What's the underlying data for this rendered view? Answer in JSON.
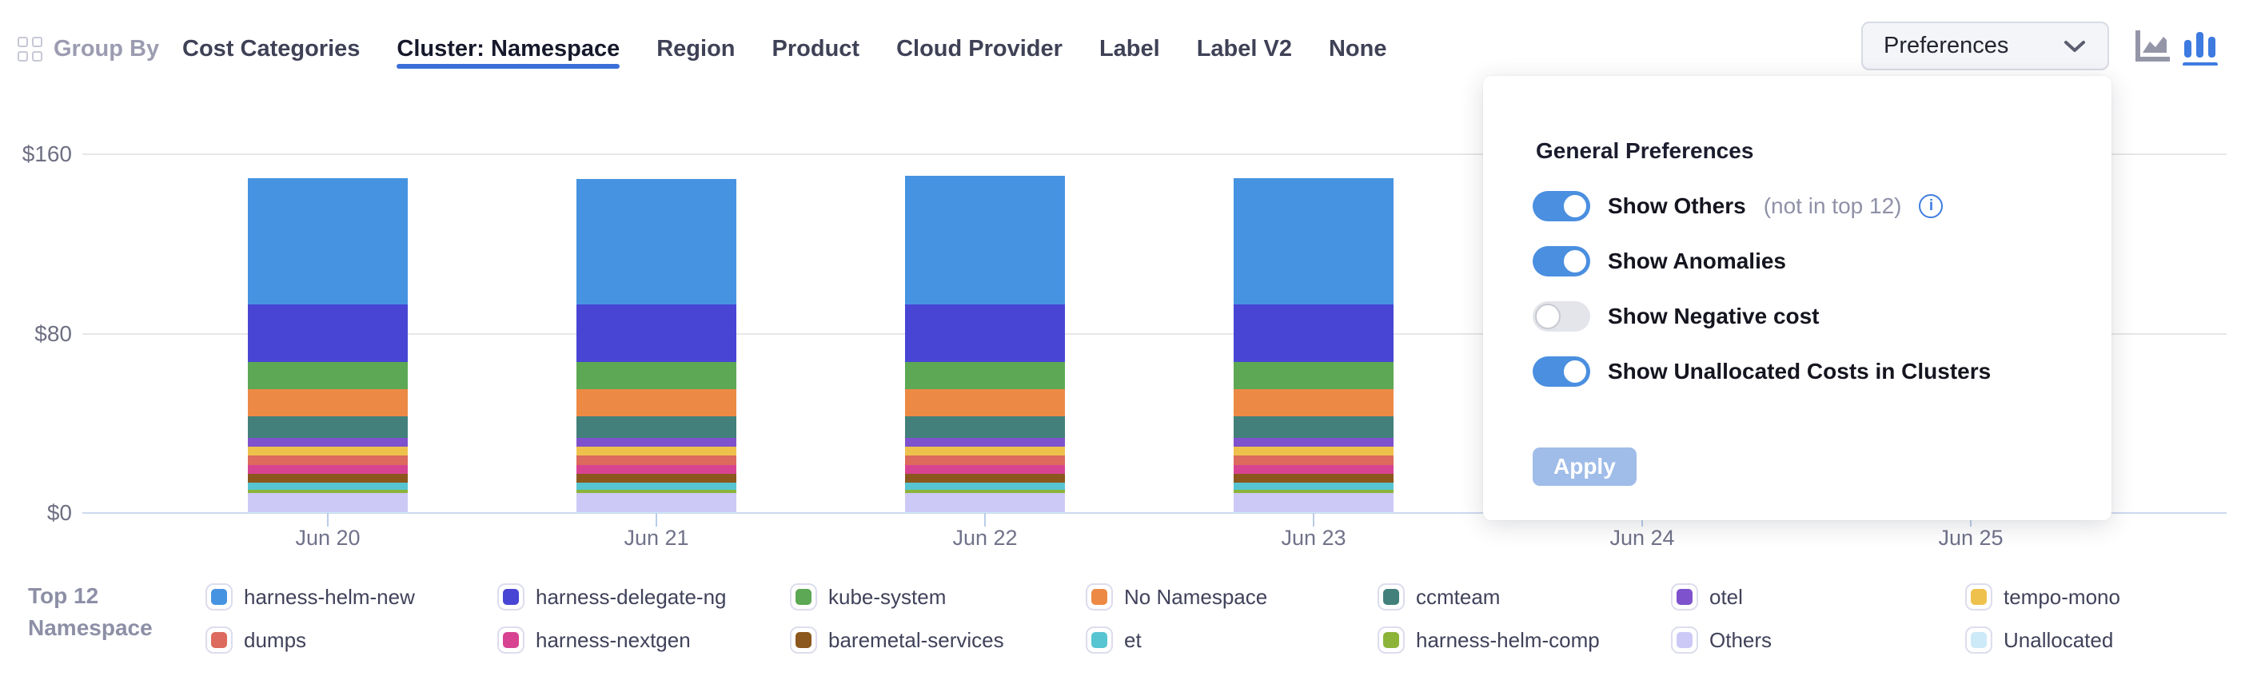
{
  "topbar": {
    "group_by_label": "Group By",
    "tabs": [
      {
        "label": "Cost Categories",
        "active": false
      },
      {
        "label": "Cluster: Namespace",
        "active": true
      },
      {
        "label": "Region",
        "active": false
      },
      {
        "label": "Product",
        "active": false
      },
      {
        "label": "Cloud Provider",
        "active": false
      },
      {
        "label": "Label",
        "active": false
      },
      {
        "label": "Label V2",
        "active": false
      },
      {
        "label": "None",
        "active": false
      }
    ],
    "preferences_button_label": "Preferences",
    "chart_type_active": "bar"
  },
  "preferences_panel": {
    "title": "General Preferences",
    "toggles": [
      {
        "label": "Show Others",
        "suffix": "(not in top 12)",
        "info_icon": true,
        "on": true
      },
      {
        "label": "Show Anomalies",
        "suffix": "",
        "info_icon": false,
        "on": true
      },
      {
        "label": "Show Negative cost",
        "suffix": "",
        "info_icon": false,
        "on": false
      },
      {
        "label": "Show Unallocated Costs in Clusters",
        "suffix": "",
        "info_icon": false,
        "on": true
      }
    ],
    "apply_label": "Apply"
  },
  "legend": {
    "title_line1": "Top 12",
    "title_line2": "Namespace"
  },
  "colors": {
    "accent_blue": "#3b6fd8",
    "toggle_on": "#4a8fe0",
    "toggle_off": "#e3e5ea",
    "apply_disabled": "#a0bce8",
    "gridline": "#e7e7e7",
    "axis": "#ccd9ee"
  },
  "chart_data": {
    "type": "bar",
    "stacked": true,
    "title": "",
    "xlabel": "",
    "ylabel": "",
    "ylim": [
      0,
      160
    ],
    "yticks": [
      0,
      80,
      160
    ],
    "ytick_labels": [
      "$0",
      "$80",
      "$160"
    ],
    "categories": [
      "Jun 20",
      "Jun 21",
      "Jun 22",
      "Jun 23",
      "Jun 24",
      "Jun 25"
    ],
    "bar_categories": [
      "Jun 20",
      "Jun 21",
      "Jun 22",
      "Jun 23"
    ],
    "legend_position": "bottom",
    "grid": true,
    "series": [
      {
        "name": "harness-helm-new",
        "color": "#4693e1",
        "values": [
          56.4,
          56.0,
          57.4,
          56.4
        ]
      },
      {
        "name": "harness-delegate-ng",
        "color": "#4845d5",
        "values": [
          25.5,
          25.5,
          25.5,
          25.5
        ]
      },
      {
        "name": "kube-system",
        "color": "#5ca854",
        "values": [
          12.3,
          12.3,
          12.3,
          12.3
        ]
      },
      {
        "name": "No Namespace",
        "color": "#ec8a45",
        "values": [
          12.1,
          12.1,
          12.1,
          12.1
        ]
      },
      {
        "name": "ccmteam",
        "color": "#43807b",
        "values": [
          9.5,
          9.5,
          9.5,
          9.5
        ]
      },
      {
        "name": "otel",
        "color": "#7e52cc",
        "values": [
          4.2,
          4.2,
          4.2,
          4.2
        ]
      },
      {
        "name": "tempo-mono",
        "color": "#eec14d",
        "values": [
          3.8,
          3.8,
          3.8,
          3.8
        ]
      },
      {
        "name": "dumps",
        "color": "#dc6a5d",
        "values": [
          4.3,
          4.3,
          4.3,
          4.3
        ]
      },
      {
        "name": "harness-nextgen",
        "color": "#d84391",
        "values": [
          3.9,
          3.9,
          3.9,
          3.9
        ]
      },
      {
        "name": "baremetal-services",
        "color": "#8c571c",
        "values": [
          3.7,
          3.7,
          3.7,
          3.7
        ]
      },
      {
        "name": "et",
        "color": "#57c5d1",
        "values": [
          3.2,
          3.2,
          3.2,
          3.2
        ]
      },
      {
        "name": "harness-helm-comp",
        "color": "#8cb438",
        "values": [
          1.5,
          1.5,
          1.5,
          1.5
        ]
      },
      {
        "name": "Others",
        "color": "#cdc9f6",
        "values": [
          8.5,
          8.5,
          8.5,
          8.5
        ]
      },
      {
        "name": "Unallocated",
        "color": "#cdeaf8",
        "values": [
          0.5,
          0.5,
          0.5,
          0.5
        ]
      }
    ]
  }
}
